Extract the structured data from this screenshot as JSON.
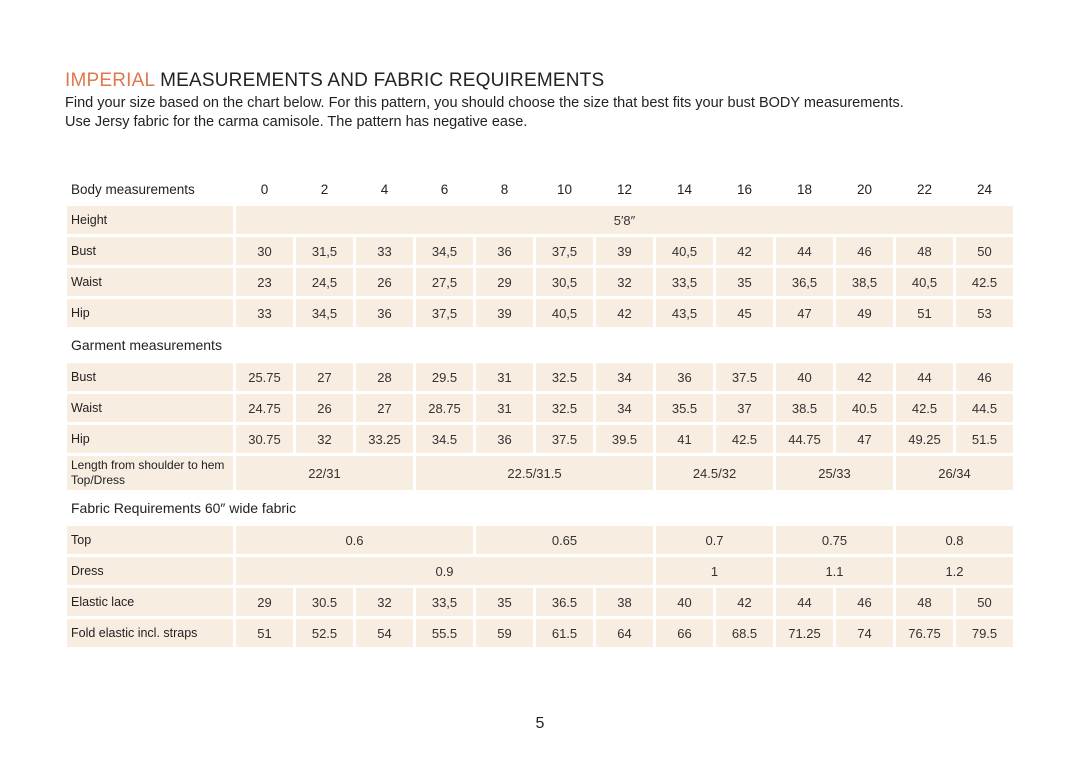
{
  "header": {
    "title_highlight": "IMPERIAL",
    "title": "MEASUREMENTS AND FABRIC REQUIREMENTS",
    "description": [
      "Find your size based on the chart below. For this pattern, you should choose the size that best fits your bust BODY measurements.",
      "Use Jersy fabric for the carma camisole. The pattern has negative ease."
    ]
  },
  "table": {
    "header_label": "Body measurements",
    "sizes": [
      "0",
      "2",
      "4",
      "6",
      "8",
      "10",
      "12",
      "14",
      "16",
      "18",
      "20",
      "22",
      "24"
    ],
    "body_rows": [
      {
        "label": "Height",
        "cells": [
          "5′8″"
        ]
      },
      {
        "label": "Bust",
        "cells": [
          "30",
          "31,5",
          "33",
          "34,5",
          "36",
          "37,5",
          "39",
          "40,5",
          "42",
          "44",
          "46",
          "48",
          "50"
        ]
      },
      {
        "label": "Waist",
        "cells": [
          "23",
          "24,5",
          "26",
          "27,5",
          "29",
          "30,5",
          "32",
          "33,5",
          "35",
          "36,5",
          "38,5",
          "40,5",
          "42.5"
        ]
      },
      {
        "label": "Hip",
        "cells": [
          "33",
          "34,5",
          "36",
          "37,5",
          "39",
          "40,5",
          "42",
          "43,5",
          "45",
          "47",
          "49",
          "51",
          "53"
        ]
      }
    ],
    "garment_heading": "Garment measurements",
    "garment_rows": [
      {
        "label": "Bust",
        "cells": [
          "25.75",
          "27",
          "28",
          "29.5",
          "31",
          "32.5",
          "34",
          "36",
          "37.5",
          "40",
          "42",
          "44",
          "46"
        ]
      },
      {
        "label": "Waist",
        "cells": [
          "24.75",
          "26",
          "27",
          "28.75",
          "31",
          "32.5",
          "34",
          "35.5",
          "37",
          "38.5",
          "40.5",
          "42.5",
          "44.5"
        ]
      },
      {
        "label": "Hip",
        "cells": [
          "30.75",
          "32",
          "33.25",
          "34.5",
          "36",
          "37.5",
          "39.5",
          "41",
          "42.5",
          "44.75",
          "47",
          "49.25",
          "51.5"
        ]
      },
      {
        "label": "Length from shoulder to hem Top/Dress",
        "cells": [
          "22/31",
          "22.5/31.5",
          "24.5/32",
          "25/33",
          "26/34"
        ]
      }
    ],
    "fabric_heading": "Fabric Requirements 60″ wide fabric",
    "fabric_rows": [
      {
        "label": "Top",
        "cells": [
          "0.6",
          "0.65",
          "0.7",
          "0.75",
          "0.8"
        ]
      },
      {
        "label": "Dress",
        "cells": [
          "0.9",
          "1",
          "1.1",
          "1.2"
        ]
      },
      {
        "label": "Elastic lace",
        "cells": [
          "29",
          "30.5",
          "32",
          "33,5",
          "35",
          "36.5",
          "38",
          "40",
          "42",
          "44",
          "46",
          "48",
          "50"
        ]
      },
      {
        "label": "Fold elastic incl. straps",
        "cells": [
          "51",
          "52.5",
          "54",
          "55.5",
          "59",
          "61.5",
          "64",
          "66",
          "68.5",
          "71.25",
          "74",
          "76.75",
          "79.5"
        ]
      }
    ]
  },
  "page_number": "5"
}
